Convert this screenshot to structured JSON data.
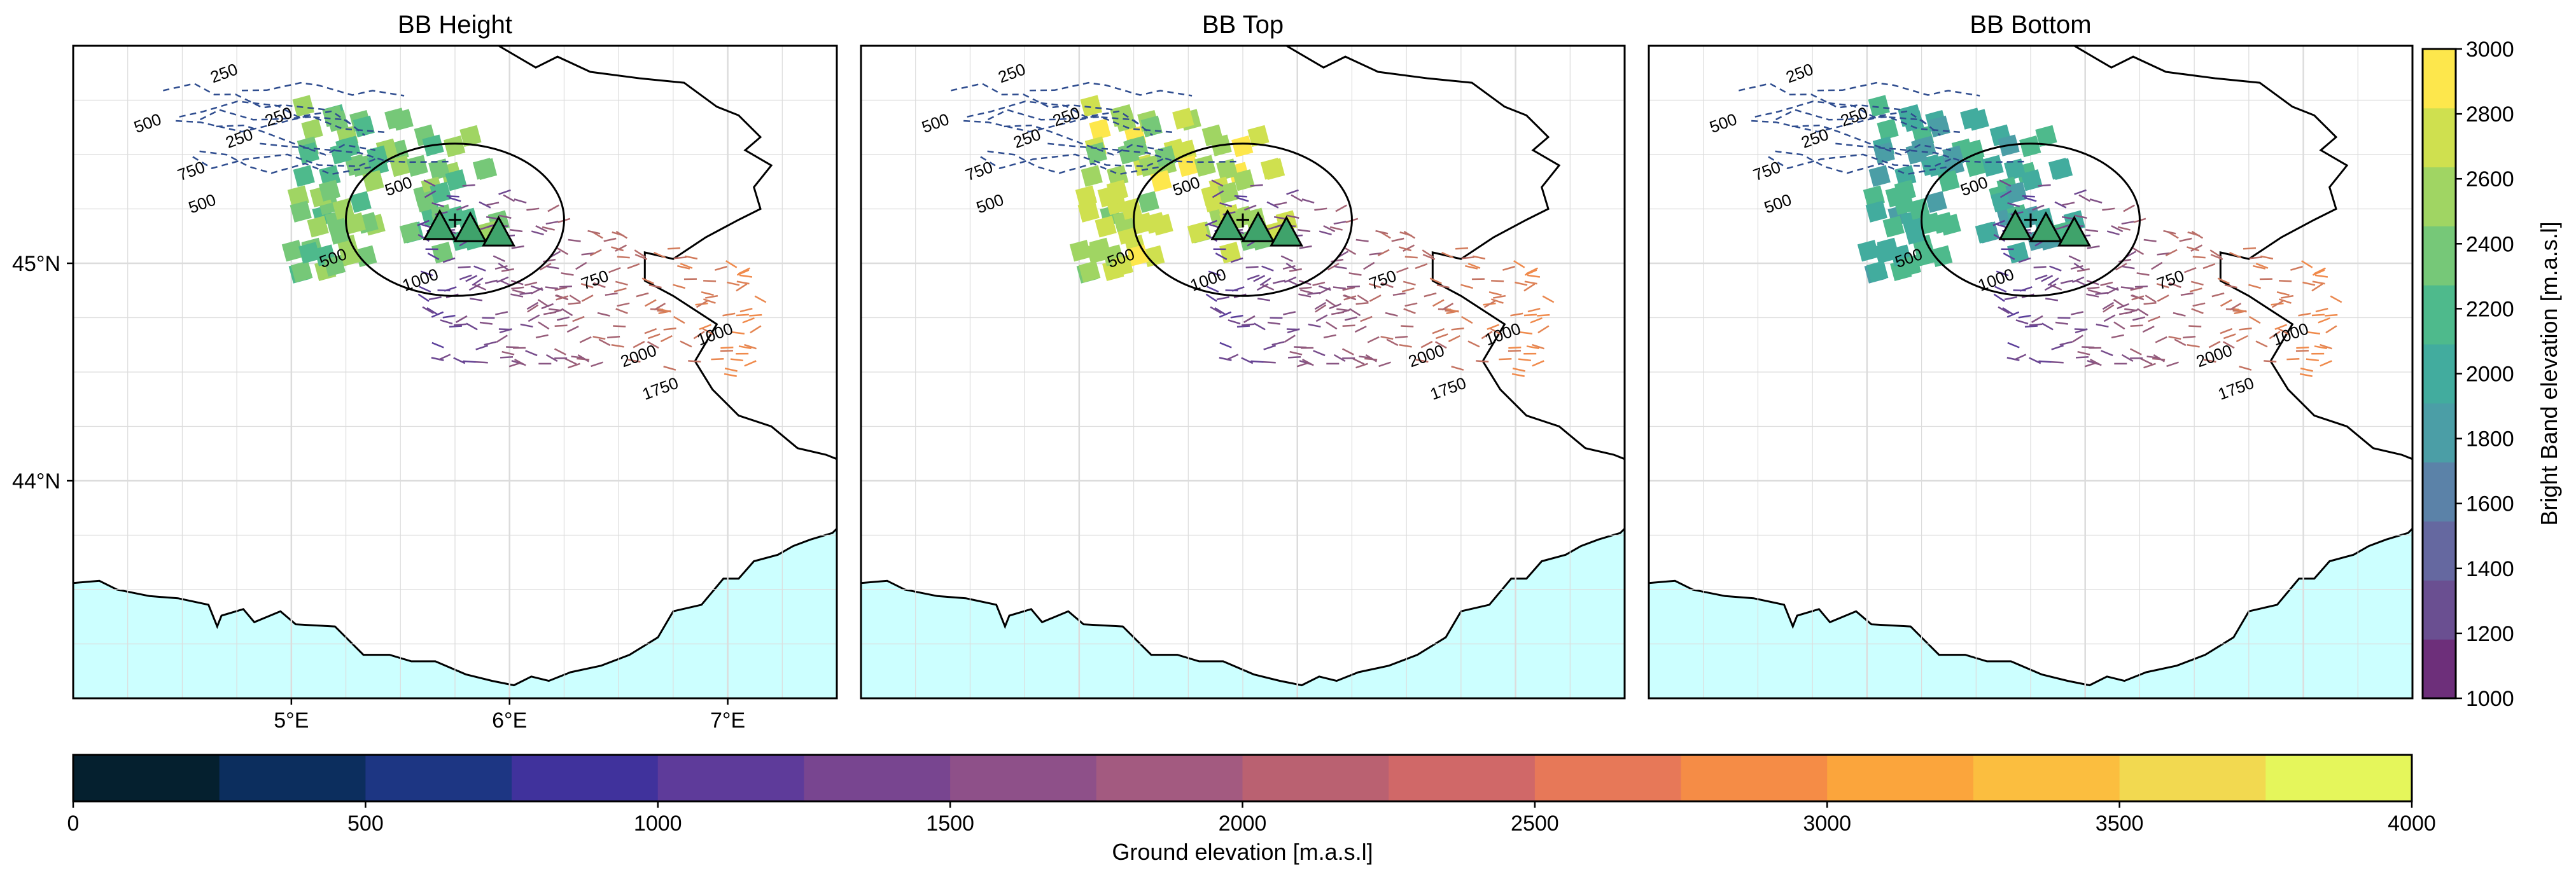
{
  "panels": [
    {
      "title": "BB Height",
      "x_ticks": [
        "5°E",
        "6°E",
        "7°E"
      ],
      "y_ticks": [
        "45°N",
        "44°N"
      ]
    },
    {
      "title": "BB Top",
      "x_ticks": [],
      "y_ticks": []
    },
    {
      "title": "BB Bottom",
      "x_ticks": [],
      "y_ticks": []
    }
  ],
  "colors": {
    "sea": "#ccffff",
    "land": "#ffffff",
    "coast": "#000000",
    "grid": "#dcdcdc"
  },
  "contour_labels": [
    "250",
    "250",
    "250",
    "500",
    "750",
    "500",
    "500",
    "500",
    "1000",
    "750",
    "1000",
    "1750",
    "2000"
  ],
  "colorbar_bb": {
    "label": "Bright Band elevation [m.a.s.l]",
    "ticks": [
      "1000",
      "1200",
      "1400",
      "1600",
      "1800",
      "2000",
      "2200",
      "2400",
      "2600",
      "2800",
      "3000"
    ],
    "colors": [
      "#6d2f7a",
      "#6a4f91",
      "#6568a0",
      "#5b82a8",
      "#4b9ea6",
      "#42ac9e",
      "#4eba8c",
      "#76c878",
      "#a0d563",
      "#cfe04f",
      "#fde74c"
    ]
  },
  "colorbar_ground": {
    "label": "Ground elevation [m.a.s.l]",
    "ticks": [
      "0",
      "500",
      "1000",
      "1500",
      "2000",
      "2500",
      "3000",
      "3500",
      "4000"
    ],
    "colors": [
      "#05202f",
      "#0c2e5e",
      "#1d3683",
      "#40329c",
      "#5e3b9a",
      "#784590",
      "#8e5089",
      "#a35a80",
      "#ba6171",
      "#d06868",
      "#e77858",
      "#f58c46",
      "#fba53c",
      "#fbbe3f",
      "#f2d950",
      "#e5f65b"
    ]
  },
  "chart_data": [
    {
      "type": "heatmap",
      "title": "BB Height",
      "value_range": [
        1000,
        3000
      ],
      "typical_value": 2500,
      "lat_ticks": [
        44,
        45
      ],
      "lon_ticks": [
        5,
        6,
        7
      ]
    },
    {
      "type": "heatmap",
      "title": "BB Top",
      "value_range": [
        1000,
        3000
      ],
      "typical_value": 2800,
      "lat_ticks": [
        44,
        45
      ],
      "lon_ticks": [
        5,
        6,
        7
      ]
    },
    {
      "type": "heatmap",
      "title": "BB Bottom",
      "value_range": [
        1000,
        3000
      ],
      "typical_value": 2150,
      "lat_ticks": [
        44,
        45
      ],
      "lon_ticks": [
        5,
        6,
        7
      ]
    }
  ]
}
